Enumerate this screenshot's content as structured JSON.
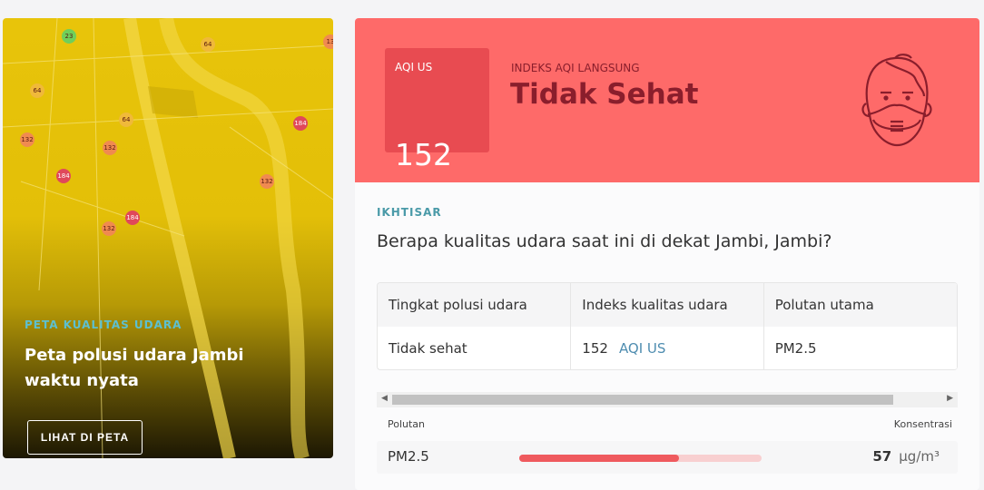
{
  "map": {
    "kicker": "PETA KUALITAS UDARA",
    "title": "Peta polusi udara Jambi waktu nyata",
    "button": "LIHAT DI PETA",
    "markers": [
      {
        "v": "23",
        "c": "#6fcf5a"
      },
      {
        "v": "64",
        "c": "#f0b93a"
      },
      {
        "v": "64",
        "c": "#f0b93a"
      },
      {
        "v": "64",
        "c": "#f0b93a"
      },
      {
        "v": "132",
        "c": "#f08a50"
      },
      {
        "v": "132",
        "c": "#f08a50"
      },
      {
        "v": "132",
        "c": "#f08a50"
      },
      {
        "v": "132",
        "c": "#f08a50"
      },
      {
        "v": "184",
        "c": "#e0485a"
      },
      {
        "v": "184",
        "c": "#e0485a"
      },
      {
        "v": "184",
        "c": "#e0485a"
      },
      {
        "v": "13",
        "c": "#f08a50"
      },
      {
        "v": "132",
        "c": "#f08a50"
      }
    ]
  },
  "hero": {
    "aqi_label": "AQI US",
    "aqi_value": "152",
    "kicker": "INDEKS AQI LANGSUNG",
    "status": "Tidak Sehat",
    "color": "#fe6a69",
    "icon": "face-mask-icon"
  },
  "overview": {
    "label": "IKHTISAR",
    "question": "Berapa kualitas udara saat ini di dekat Jambi, Jambi?",
    "headers": [
      "Tingkat polusi udara",
      "Indeks kualitas udara",
      "Polutan utama"
    ],
    "row": {
      "level": "Tidak sehat",
      "aqi": "152",
      "aqi_unit": "AQI US",
      "pollutant": "PM2.5"
    }
  },
  "pollutants": {
    "header_left": "Polutan",
    "header_right": "Konsentrasi",
    "items": [
      {
        "name": "PM2.5",
        "value": "57",
        "unit": "µg/m³",
        "level_percent": 66
      }
    ]
  }
}
